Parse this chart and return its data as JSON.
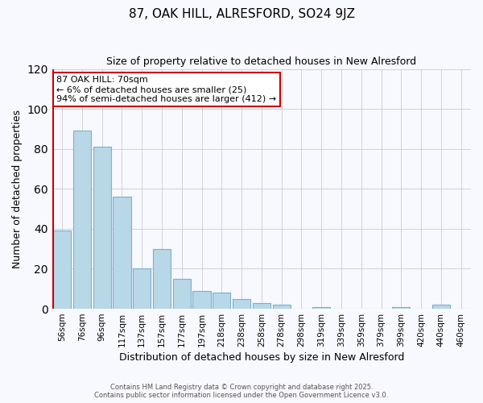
{
  "title": "87, OAK HILL, ALRESFORD, SO24 9JZ",
  "subtitle": "Size of property relative to detached houses in New Alresford",
  "xlabel": "Distribution of detached houses by size in New Alresford",
  "ylabel": "Number of detached properties",
  "bar_labels": [
    "56sqm",
    "76sqm",
    "96sqm",
    "117sqm",
    "137sqm",
    "157sqm",
    "177sqm",
    "197sqm",
    "218sqm",
    "238sqm",
    "258sqm",
    "278sqm",
    "298sqm",
    "319sqm",
    "339sqm",
    "359sqm",
    "379sqm",
    "399sqm",
    "420sqm",
    "440sqm",
    "460sqm"
  ],
  "bar_values": [
    39,
    89,
    81,
    56,
    20,
    30,
    15,
    9,
    8,
    5,
    3,
    2,
    0,
    1,
    0,
    0,
    0,
    1,
    0,
    2,
    0
  ],
  "bar_color": "#b8d8e8",
  "bar_edge_color": "#7ab0cc",
  "marker_color": "#cc0000",
  "ylim": [
    0,
    120
  ],
  "yticks": [
    0,
    20,
    40,
    60,
    80,
    100,
    120
  ],
  "annotation_title": "87 OAK HILL: 70sqm",
  "annotation_line1": "← 6% of detached houses are smaller (25)",
  "annotation_line2": "94% of semi-detached houses are larger (412) →",
  "annotation_box_color": "#ffffff",
  "annotation_box_edge": "#cc0000",
  "footer1": "Contains HM Land Registry data © Crown copyright and database right 2025.",
  "footer2": "Contains public sector information licensed under the Open Government Licence v3.0.",
  "background_color": "#f8f8ff",
  "grid_color": "#cccccc"
}
